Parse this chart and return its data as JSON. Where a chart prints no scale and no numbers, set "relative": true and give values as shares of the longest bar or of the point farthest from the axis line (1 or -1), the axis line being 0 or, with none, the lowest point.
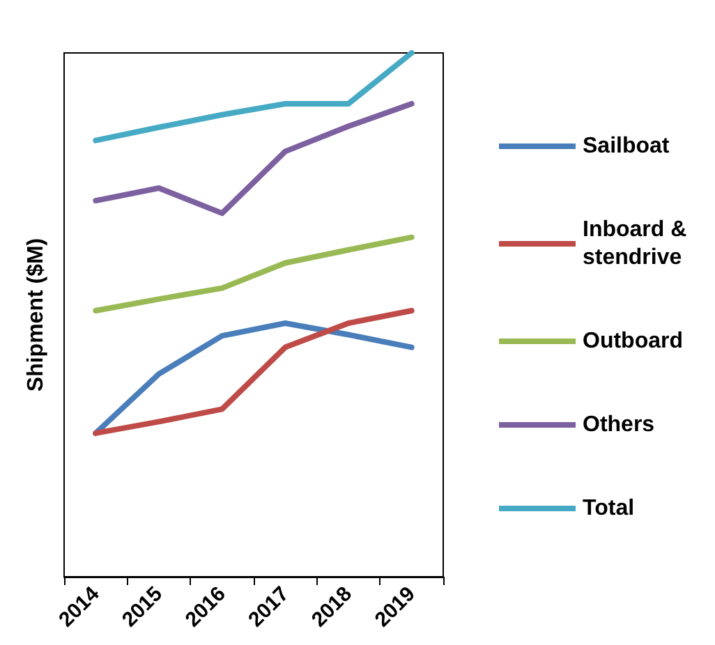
{
  "chart_data": {
    "type": "line",
    "ylabel": "Shipment ($M)",
    "relative": true,
    "legend": "right",
    "grid": false,
    "marker": "none",
    "line_style": "solid",
    "categories": [
      "2014",
      "2015",
      "2016",
      "2017",
      "2018",
      "2019"
    ],
    "series": [
      {
        "name": "Sailboat",
        "color": "#4a7ebb",
        "values": [
          0.274,
          0.387,
          0.46,
          0.484,
          0.462,
          0.438
        ]
      },
      {
        "name": "Inboard & stendrive",
        "color": "#be4b48",
        "values": [
          0.274,
          0.296,
          0.32,
          0.438,
          0.484,
          0.508
        ]
      },
      {
        "name": "Outboard",
        "color": "#98b954",
        "values": [
          0.508,
          0.53,
          0.551,
          0.599,
          0.624,
          0.648
        ]
      },
      {
        "name": "Others",
        "color": "#7d60a0",
        "values": [
          0.718,
          0.742,
          0.694,
          0.812,
          0.86,
          0.903
        ]
      },
      {
        "name": "Total",
        "color": "#46aac5",
        "values": [
          0.833,
          0.858,
          0.882,
          0.903,
          0.903,
          1
        ]
      }
    ]
  }
}
